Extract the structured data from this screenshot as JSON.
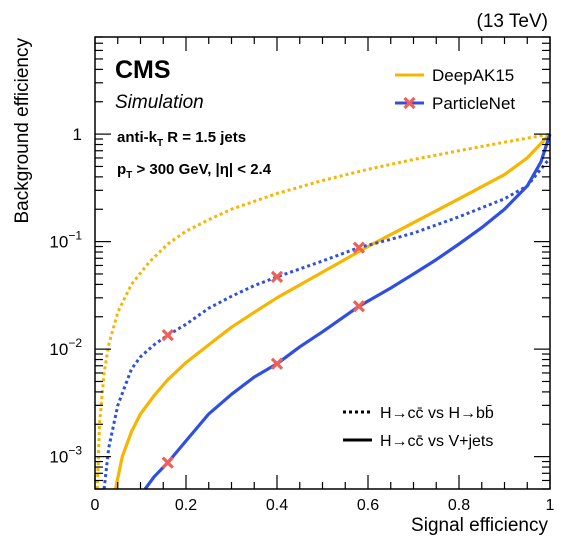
{
  "chart_data": {
    "type": "line",
    "energy_label": "(13 TeV)",
    "cms_label": "CMS",
    "sim_label": "Simulation",
    "jet_label": {
      "pre": "anti-k",
      "sub": "T",
      "post": " R = 1.5 jets"
    },
    "cut_label": {
      "pre": "p",
      "sub": "T",
      "post": " > 300 GeV, |η| < 2.4"
    },
    "xlabel": "Signal efficiency",
    "ylabel": "Background efficiency",
    "xlim": [
      0,
      1
    ],
    "ylim": [
      0.0005,
      8
    ],
    "yscale": "log",
    "x_ticks": [
      "0",
      "0.2",
      "0.4",
      "0.6",
      "0.8",
      "1"
    ],
    "y_ticks": [
      {
        "value": 0.001,
        "base": "10",
        "exp": "−3"
      },
      {
        "value": 0.01,
        "base": "10",
        "exp": "−2"
      },
      {
        "value": 0.1,
        "base": "10",
        "exp": "−1"
      },
      {
        "value": 1,
        "base": "1",
        "exp": ""
      }
    ],
    "legend": {
      "position": "top-right",
      "models": [
        {
          "name": "DeepAK15",
          "color": "#f7b500",
          "marker": "none"
        },
        {
          "name": "ParticleNet",
          "color": "#2f4fe0",
          "marker": "x",
          "marker_color": "#f0605a"
        }
      ],
      "styles": [
        {
          "name": "H→cc̄ vs H→bb̄",
          "dash": "dotted"
        },
        {
          "name": "H→cc̄ vs V+jets",
          "dash": "solid"
        }
      ]
    },
    "series": [
      {
        "name": "DeepAK15: H→cc̄ vs H→bb̄",
        "color": "#f7b500",
        "dash": "dotted",
        "x": [
          0.005,
          0.01,
          0.02,
          0.03,
          0.05,
          0.08,
          0.12,
          0.16,
          0.2,
          0.25,
          0.3,
          0.4,
          0.5,
          0.6,
          0.7,
          0.8,
          0.9,
          1.0
        ],
        "y": [
          0.0005,
          0.002,
          0.006,
          0.011,
          0.022,
          0.04,
          0.065,
          0.095,
          0.125,
          0.16,
          0.2,
          0.28,
          0.37,
          0.47,
          0.58,
          0.7,
          0.84,
          1.0
        ]
      },
      {
        "name": "DeepAK15: H→cc̄ vs V+jets",
        "color": "#f7b500",
        "dash": "solid",
        "x": [
          0.045,
          0.06,
          0.08,
          0.1,
          0.13,
          0.16,
          0.2,
          0.25,
          0.3,
          0.35,
          0.4,
          0.5,
          0.6,
          0.7,
          0.8,
          0.9,
          0.95,
          1.0
        ],
        "y": [
          0.0005,
          0.001,
          0.0017,
          0.0025,
          0.0037,
          0.0052,
          0.0075,
          0.011,
          0.016,
          0.022,
          0.03,
          0.052,
          0.09,
          0.15,
          0.25,
          0.42,
          0.6,
          1.0
        ]
      },
      {
        "name": "ParticleNet: H→cc̄ vs H→bb̄",
        "color": "#2f4fe0",
        "dash": "dotted",
        "x": [
          0.02,
          0.03,
          0.05,
          0.08,
          0.1,
          0.13,
          0.16,
          0.2,
          0.25,
          0.3,
          0.35,
          0.4,
          0.5,
          0.58,
          0.65,
          0.7,
          0.8,
          0.9,
          0.95,
          1.0
        ],
        "y": [
          0.0005,
          0.0012,
          0.003,
          0.0065,
          0.0085,
          0.011,
          0.0135,
          0.017,
          0.024,
          0.031,
          0.039,
          0.047,
          0.066,
          0.088,
          0.105,
          0.12,
          0.17,
          0.25,
          0.33,
          0.6
        ]
      },
      {
        "name": "ParticleNet: H→cc̄ vs V+jets",
        "color": "#2f4fe0",
        "dash": "solid",
        "x": [
          0.11,
          0.13,
          0.16,
          0.2,
          0.25,
          0.3,
          0.35,
          0.4,
          0.45,
          0.5,
          0.58,
          0.65,
          0.7,
          0.75,
          0.8,
          0.85,
          0.9,
          0.95,
          0.98,
          1.0
        ],
        "y": [
          0.0005,
          0.00065,
          0.00088,
          0.0014,
          0.0025,
          0.0038,
          0.0055,
          0.0073,
          0.0105,
          0.0145,
          0.025,
          0.037,
          0.05,
          0.068,
          0.095,
          0.135,
          0.2,
          0.33,
          0.55,
          1.0
        ]
      }
    ],
    "markers": [
      {
        "series": "ParticleNet: H→cc̄ vs H→bb̄",
        "x": 0.16,
        "y": 0.0135
      },
      {
        "series": "ParticleNet: H→cc̄ vs H→bb̄",
        "x": 0.4,
        "y": 0.047
      },
      {
        "series": "ParticleNet: H→cc̄ vs H→bb̄",
        "x": 0.58,
        "y": 0.088
      },
      {
        "series": "ParticleNet: H→cc̄ vs V+jets",
        "x": 0.16,
        "y": 0.00088
      },
      {
        "series": "ParticleNet: H→cc̄ vs V+jets",
        "x": 0.4,
        "y": 0.0073
      },
      {
        "series": "ParticleNet: H→cc̄ vs V+jets",
        "x": 0.58,
        "y": 0.025
      }
    ]
  }
}
